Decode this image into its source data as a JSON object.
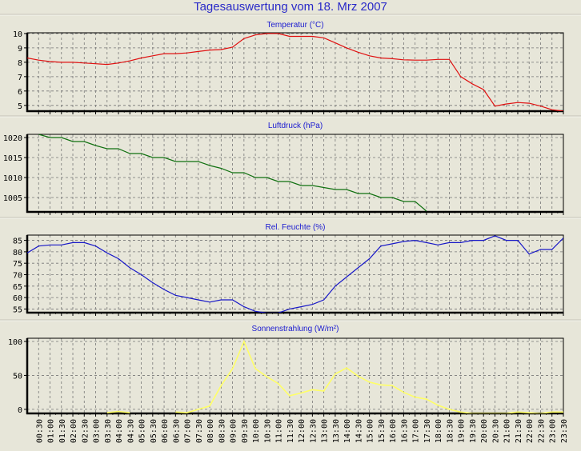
{
  "title": "Tagesauswertung vom 18. Mrz 2007",
  "x_labels": [
    "00:30",
    "01:00",
    "01:30",
    "02:00",
    "02:30",
    "03:00",
    "03:30",
    "04:00",
    "04:30",
    "05:00",
    "05:30",
    "06:00",
    "06:30",
    "07:00",
    "07:30",
    "08:00",
    "08:30",
    "09:00",
    "09:30",
    "10:00",
    "10:30",
    "11:00",
    "11:30",
    "12:00",
    "12:30",
    "13:00",
    "13:30",
    "14:00",
    "14:30",
    "15:00",
    "15:30",
    "16:00",
    "16:30",
    "17:00",
    "17:30",
    "18:00",
    "18:30",
    "19:00",
    "19:30",
    "20:00",
    "20:30",
    "21:00",
    "21:30",
    "22:00",
    "22:30",
    "23:00",
    "23:30"
  ],
  "chart_data": [
    {
      "type": "line",
      "title": "Temperatur (°C)",
      "xlabel": "",
      "ylabel": "",
      "x_start": "00:00",
      "x_step_minutes": 30,
      "yticks": [
        5,
        6,
        7,
        8,
        9,
        10
      ],
      "ylim": [
        4.6,
        10.05
      ],
      "color": "#e01010",
      "grid": true,
      "values": [
        8.3,
        8.15,
        8.05,
        8.0,
        8.0,
        7.95,
        7.9,
        7.85,
        7.95,
        8.1,
        8.3,
        8.45,
        8.6,
        8.6,
        8.65,
        8.75,
        8.85,
        8.88,
        9.05,
        9.65,
        9.9,
        10.0,
        10.0,
        9.8,
        9.8,
        9.8,
        9.7,
        9.35,
        9.0,
        8.7,
        8.45,
        8.3,
        8.25,
        8.17,
        8.15,
        8.15,
        8.2,
        8.2,
        7.0,
        6.5,
        6.1,
        4.95,
        5.1,
        5.2,
        5.15,
        4.95,
        4.7,
        4.6
      ]
    },
    {
      "type": "line",
      "title": "Luftdruck (hPa)",
      "xlabel": "",
      "ylabel": "",
      "x_start": "00:00",
      "x_step_minutes": 30,
      "yticks": [
        1005,
        1010,
        1015,
        1020
      ],
      "ylim": [
        1001.4,
        1020.8
      ],
      "color": "#107010",
      "grid": true,
      "values": [
        null,
        1020.8,
        1020,
        1020,
        1019,
        1019,
        1018,
        1017.2,
        1017.2,
        1016,
        1016,
        1015,
        1015,
        1014,
        1014,
        1014,
        1013,
        1012.3,
        1011.2,
        1011.2,
        1010,
        1010,
        1009,
        1009,
        1008,
        1008,
        1007.5,
        1007,
        1007,
        1006,
        1006,
        1005,
        1005,
        1004,
        1004,
        1001.6,
        null,
        null,
        null,
        null,
        null,
        null,
        null,
        null,
        null,
        null,
        null,
        null
      ]
    },
    {
      "type": "line",
      "title": "Rel. Feuchte (%)",
      "xlabel": "",
      "ylabel": "",
      "x_start": "00:00",
      "x_step_minutes": 30,
      "yticks": [
        55,
        60,
        65,
        70,
        75,
        80,
        85
      ],
      "ylim": [
        53.4,
        87.3
      ],
      "color": "#1818c8",
      "grid": true,
      "values": [
        79.5,
        82.5,
        83,
        83,
        84,
        84,
        82.5,
        79.5,
        77,
        73,
        70,
        66.5,
        63.5,
        61,
        60,
        59,
        58,
        59,
        59,
        56,
        54,
        53.3,
        53.3,
        55,
        56,
        57,
        59,
        65,
        69,
        73,
        77,
        82.5,
        83.5,
        84.5,
        85,
        84,
        83,
        84,
        84,
        85,
        85,
        87,
        85,
        85,
        79,
        81,
        81,
        86
      ]
    },
    {
      "type": "line",
      "title": "Sonnenstrahlung (W/m²)",
      "xlabel": "",
      "ylabel": "",
      "x_start": "00:00",
      "x_step_minutes": 30,
      "yticks": [
        0,
        50,
        100
      ],
      "ylim": [
        -6,
        104.7
      ],
      "color": "#ffff66",
      "grid": true,
      "values": [
        null,
        null,
        null,
        null,
        null,
        null,
        null,
        -5,
        -3,
        -5,
        null,
        null,
        null,
        -4,
        -5,
        0,
        5,
        35,
        60,
        100,
        60,
        48,
        38,
        20,
        24,
        29,
        27,
        52,
        61,
        49,
        40,
        36,
        35,
        25,
        18,
        15,
        6,
        0,
        -4,
        -6,
        -6,
        -6,
        -6,
        -4,
        -5,
        -6,
        -4,
        -4
      ]
    }
  ]
}
